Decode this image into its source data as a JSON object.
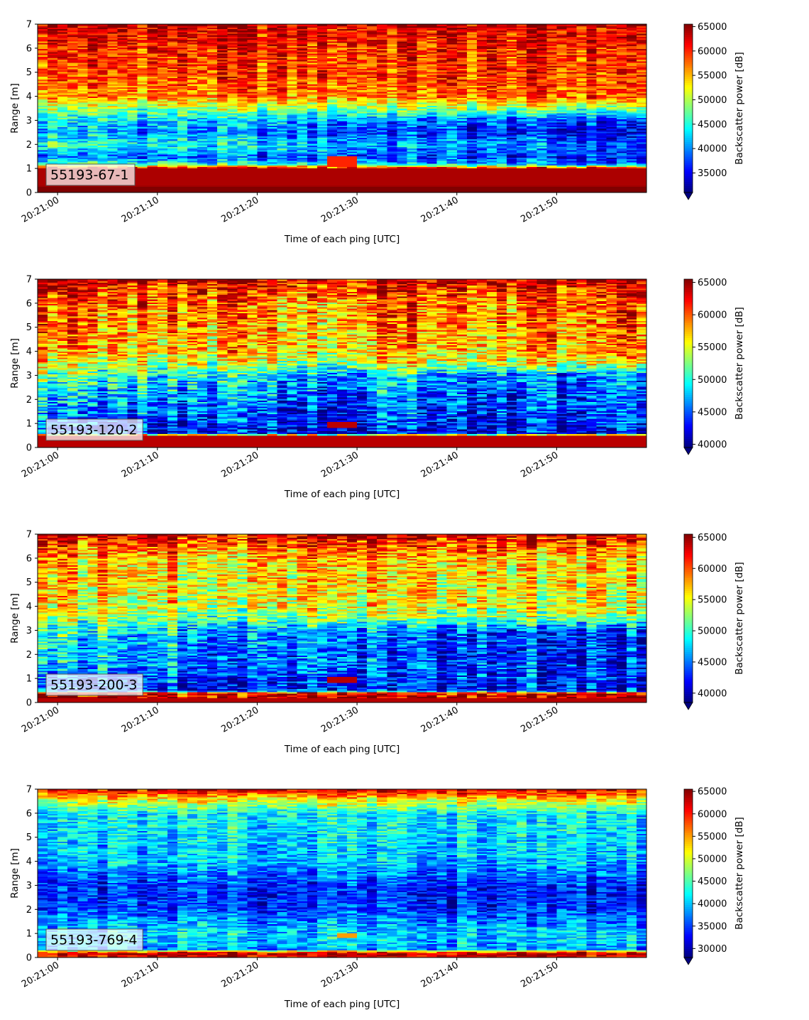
{
  "chart_data": [
    {
      "type": "heatmap",
      "label": "55193-67-1",
      "xlabel": "Time of each ping [UTC]",
      "ylabel": "Range [m]",
      "x_range": [
        "20:20:58",
        "20:21:59"
      ],
      "ylim": [
        0,
        7
      ],
      "y_ticks": [
        "0",
        "1",
        "2",
        "3",
        "4",
        "5",
        "6",
        "7"
      ],
      "x_ticks": [
        "20:21:00",
        "20:21:10",
        "20:21:20",
        "20:21:30",
        "20:21:40",
        "20:21:50"
      ],
      "colorbar": {
        "label": "Backscatter power [dB]",
        "range": [
          31000,
          65500
        ],
        "ticks": [
          "35000",
          "40000",
          "45000",
          "50000",
          "55000",
          "60000",
          "65000"
        ],
        "extend": "min",
        "colormap": "jet"
      },
      "profile": {
        "range_m": [
          0,
          0.25,
          0.3,
          1.0,
          1.2,
          1.5,
          2.0,
          2.5,
          3.0,
          3.5,
          4.0,
          5.0,
          6.0,
          6.8,
          7.0
        ],
        "start_power": [
          65500,
          65500,
          64000,
          64000,
          47000,
          40000,
          46000,
          42000,
          44000,
          49000,
          56000,
          59000,
          60000,
          62000,
          64000
        ],
        "end_power": [
          65500,
          65500,
          64000,
          64000,
          38000,
          36000,
          38000,
          34000,
          36000,
          49000,
          58000,
          59500,
          60000,
          62000,
          64000
        ]
      },
      "bright_patch": {
        "time": [
          "20:21:27",
          "20:21:30"
        ],
        "range_m": [
          1.1,
          1.5
        ],
        "power": 60000
      }
    },
    {
      "type": "heatmap",
      "label": "55193-120-2",
      "xlabel": "Time of each ping [UTC]",
      "ylabel": "Range [m]",
      "x_range": [
        "20:20:58",
        "20:21:59"
      ],
      "ylim": [
        0,
        7
      ],
      "y_ticks": [
        "0",
        "1",
        "2",
        "3",
        "4",
        "5",
        "6",
        "7"
      ],
      "x_ticks": [
        "20:21:00",
        "20:21:10",
        "20:21:20",
        "20:21:30",
        "20:21:40",
        "20:21:50"
      ],
      "colorbar": {
        "label": "Backscatter power [dB]",
        "range": [
          39500,
          65500
        ],
        "ticks": [
          "40000",
          "45000",
          "50000",
          "55000",
          "60000",
          "65000"
        ],
        "extend": "min",
        "colormap": "jet"
      },
      "profile": {
        "range_m": [
          0,
          0.2,
          0.5,
          0.6,
          1.0,
          1.5,
          2.0,
          2.5,
          3.0,
          3.5,
          4.0,
          5.0,
          6.0,
          6.7,
          7.0
        ],
        "start_power": [
          64000,
          64000,
          64000,
          43000,
          44000,
          45000,
          47000,
          49000,
          51000,
          54000,
          57000,
          58500,
          59500,
          62000,
          64000
        ],
        "end_power": [
          64000,
          64000,
          64000,
          42000,
          43000,
          44000,
          44000,
          44500,
          45000,
          55000,
          57500,
          58500,
          59500,
          62000,
          64000
        ]
      },
      "bright_patch": {
        "time": [
          "20:21:27",
          "20:21:30"
        ],
        "range_m": [
          0.85,
          1.05
        ],
        "power": 64000
      }
    },
    {
      "type": "heatmap",
      "label": "55193-200-3",
      "xlabel": "Time of each ping [UTC]",
      "ylabel": "Range [m]",
      "x_range": [
        "20:20:58",
        "20:21:59"
      ],
      "ylim": [
        0,
        7
      ],
      "y_ticks": [
        "0",
        "1",
        "2",
        "3",
        "4",
        "5",
        "6",
        "7"
      ],
      "x_ticks": [
        "20:21:00",
        "20:21:10",
        "20:21:20",
        "20:21:30",
        "20:21:40",
        "20:21:50"
      ],
      "colorbar": {
        "label": "Backscatter power [dB]",
        "range": [
          38500,
          65500
        ],
        "ticks": [
          "40000",
          "45000",
          "50000",
          "55000",
          "60000",
          "65000"
        ],
        "extend": "min",
        "colormap": "jet"
      },
      "profile": {
        "range_m": [
          0,
          0.2,
          0.4,
          0.5,
          1.0,
          1.5,
          2.0,
          2.5,
          3.0,
          3.5,
          4.0,
          5.0,
          6.0,
          6.7,
          7.0
        ],
        "start_power": [
          64000,
          64000,
          63000,
          43000,
          44000,
          46000,
          47000,
          48000,
          49000,
          52000,
          55000,
          56000,
          57000,
          61000,
          64000
        ],
        "end_power": [
          64000,
          64000,
          63000,
          42000,
          43000,
          43000,
          42000,
          42000,
          42500,
          52000,
          55000,
          56000,
          57000,
          61000,
          64000
        ]
      },
      "bright_patch": {
        "time": [
          "20:21:27",
          "20:21:30"
        ],
        "range_m": [
          0.85,
          1.05
        ],
        "power": 64000
      }
    },
    {
      "type": "heatmap",
      "label": "55193-769-4",
      "xlabel": "Time of each ping [UTC]",
      "ylabel": "Range [m]",
      "x_range": [
        "20:20:58",
        "20:21:59"
      ],
      "ylim": [
        0,
        7
      ],
      "y_ticks": [
        "0",
        "1",
        "2",
        "3",
        "4",
        "5",
        "6",
        "7"
      ],
      "x_ticks": [
        "20:21:00",
        "20:21:10",
        "20:21:20",
        "20:21:30",
        "20:21:40",
        "20:21:50"
      ],
      "colorbar": {
        "label": "Backscatter power [dB]",
        "range": [
          28000,
          65500
        ],
        "ticks": [
          "30000",
          "35000",
          "40000",
          "45000",
          "50000",
          "55000",
          "60000",
          "65000"
        ],
        "extend": "min",
        "colormap": "jet"
      },
      "profile": {
        "range_m": [
          0,
          0.15,
          0.25,
          0.35,
          0.5,
          1.0,
          1.5,
          2.0,
          2.5,
          3.0,
          3.5,
          4.0,
          5.0,
          6.0,
          6.6,
          7.0
        ],
        "start_power": [
          60000,
          64000,
          57000,
          38000,
          40000,
          41000,
          39000,
          36000,
          34500,
          35000,
          37000,
          40000,
          41000,
          42000,
          52000,
          62000
        ],
        "end_power": [
          60000,
          64000,
          57000,
          38000,
          39000,
          40000,
          37000,
          34000,
          33000,
          33500,
          37000,
          39500,
          40500,
          42000,
          52000,
          62000
        ]
      },
      "bright_patch": {
        "time": [
          "20:21:28",
          "20:21:30"
        ],
        "range_m": [
          0.85,
          1.0
        ],
        "power": 55000
      }
    }
  ]
}
